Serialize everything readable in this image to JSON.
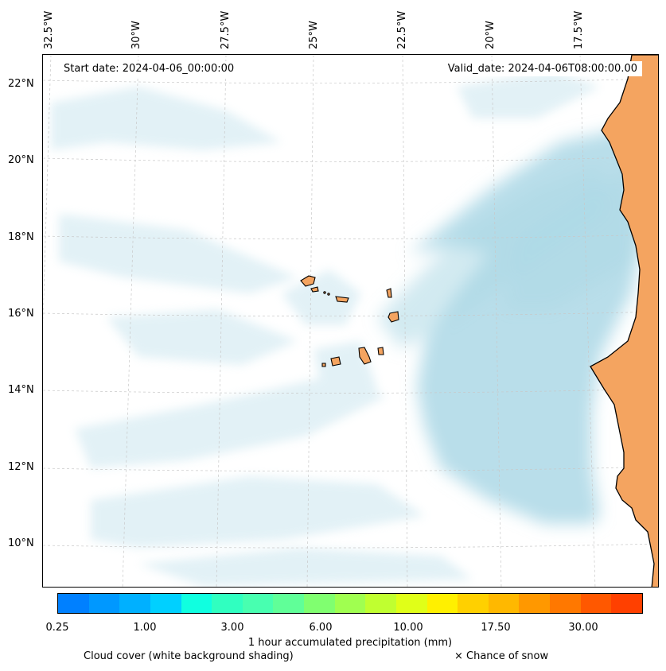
{
  "header": {
    "start_date": "Start date: 2024-04-06_00:00:00",
    "valid_date": "Valid_date: 2024-04-06T08:00:00.00"
  },
  "longitude_labels": [
    "32.5°W",
    "30°W",
    "27.5°W",
    "25°W",
    "22.5°W",
    "20°W",
    "17.5°W"
  ],
  "latitude_labels": [
    "22°N",
    "20°N",
    "18°N",
    "16°N",
    "14°N",
    "12°N",
    "10°N"
  ],
  "colorbar": {
    "colors": [
      "#0080ff",
      "#0098ff",
      "#00b0ff",
      "#00d0ff",
      "#10ffe0",
      "#30ffc0",
      "#48ffb0",
      "#60ff98",
      "#80ff70",
      "#a0ff50",
      "#c0ff30",
      "#e0ff18",
      "#fff000",
      "#ffd000",
      "#ffb800",
      "#ff9800",
      "#ff7800",
      "#ff5800",
      "#ff4000"
    ],
    "tick_labels": [
      "0.25",
      "1.00",
      "3.00",
      "6.00",
      "10.00",
      "17.50",
      "30.00"
    ],
    "title": "1 hour accumulated precipitation (mm)"
  },
  "legend": {
    "cloud_cover": "Cloud cover (white background shading)",
    "snow": "× Chance of snow"
  },
  "style": {
    "land_color": "#f4a460",
    "cloud_color": "#add8e6"
  }
}
